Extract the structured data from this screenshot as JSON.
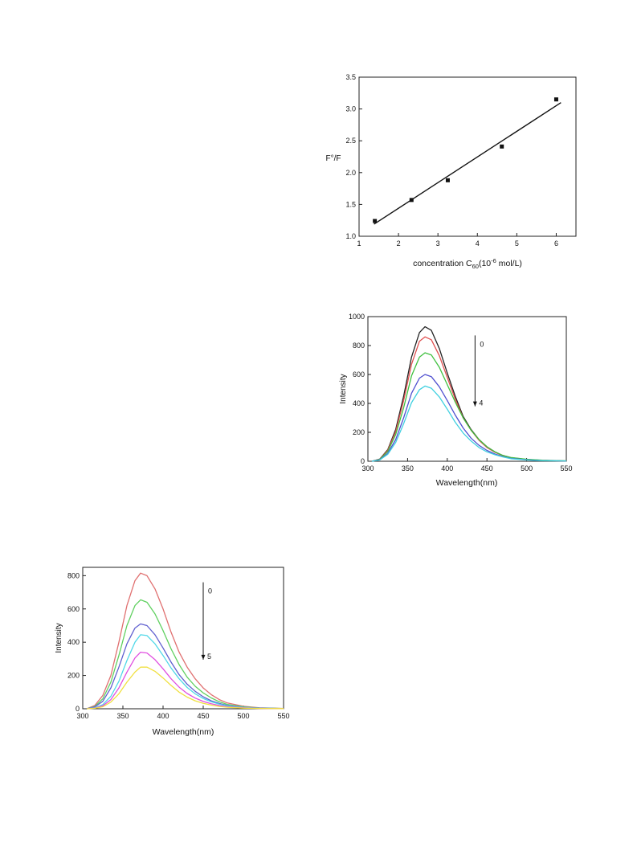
{
  "chart_data": [
    {
      "id": "stern-volmer",
      "type": "scatter",
      "ylabel": "F°/F",
      "xlabel_prefix": "concentration C",
      "xlabel_sub": "60",
      "xlabel_open": "(10",
      "xlabel_sup": "-6",
      "xlabel_suffix": " mol/L)",
      "xlim": [
        1,
        6.5
      ],
      "ylim": [
        1.0,
        3.5
      ],
      "xticks": [
        "1",
        "2",
        "3",
        "4",
        "5",
        "6"
      ],
      "yticks": [
        "1.0",
        "1.5",
        "2.0",
        "2.5",
        "3.0",
        "3.5"
      ],
      "points": [
        [
          1.4,
          1.24
        ],
        [
          2.33,
          1.57
        ],
        [
          3.25,
          1.88
        ],
        [
          4.62,
          2.41
        ],
        [
          6.0,
          3.15
        ]
      ],
      "fit": [
        [
          1.38,
          1.19
        ],
        [
          6.12,
          3.1
        ]
      ]
    },
    {
      "id": "fluorescence-1",
      "type": "line",
      "ylabel": "Intensity",
      "xlabel": "Wavelength(nm)",
      "xlim": [
        300,
        550
      ],
      "ylim": [
        0,
        1000
      ],
      "xticks": [
        "300",
        "350",
        "400",
        "450",
        "500",
        "550"
      ],
      "yticks": [
        "0",
        "200",
        "400",
        "600",
        "800",
        "1000"
      ],
      "arrow": {
        "x": 435,
        "y_top": 870,
        "y_bottom": 380,
        "label_top": "0",
        "label_bottom": "4"
      },
      "series": [
        {
          "color": "#222222",
          "points": [
            [
              305,
              0
            ],
            [
              315,
              15
            ],
            [
              325,
              80
            ],
            [
              335,
              220
            ],
            [
              345,
              450
            ],
            [
              355,
              720
            ],
            [
              365,
              890
            ],
            [
              372,
              930
            ],
            [
              380,
              905
            ],
            [
              390,
              780
            ],
            [
              400,
              610
            ],
            [
              410,
              450
            ],
            [
              420,
              310
            ],
            [
              430,
              220
            ],
            [
              440,
              150
            ],
            [
              450,
              100
            ],
            [
              460,
              65
            ],
            [
              470,
              40
            ],
            [
              480,
              25
            ],
            [
              500,
              12
            ],
            [
              520,
              6
            ],
            [
              550,
              2
            ]
          ]
        },
        {
          "color": "#e05050",
          "points": [
            [
              305,
              0
            ],
            [
              315,
              14
            ],
            [
              325,
              75
            ],
            [
              335,
              205
            ],
            [
              345,
              420
            ],
            [
              355,
              670
            ],
            [
              365,
              830
            ],
            [
              372,
              860
            ],
            [
              380,
              840
            ],
            [
              390,
              730
            ],
            [
              400,
              580
            ],
            [
              410,
              430
            ],
            [
              420,
              300
            ],
            [
              430,
              215
            ],
            [
              440,
              145
            ],
            [
              450,
              95
            ],
            [
              460,
              62
            ],
            [
              470,
              38
            ],
            [
              480,
              24
            ],
            [
              500,
              11
            ],
            [
              520,
              5
            ],
            [
              550,
              2
            ]
          ]
        },
        {
          "color": "#40c040",
          "points": [
            [
              305,
              0
            ],
            [
              315,
              13
            ],
            [
              325,
              68
            ],
            [
              335,
              185
            ],
            [
              345,
              370
            ],
            [
              355,
              590
            ],
            [
              365,
              720
            ],
            [
              372,
              750
            ],
            [
              380,
              735
            ],
            [
              390,
              650
            ],
            [
              400,
              530
            ],
            [
              410,
              410
            ],
            [
              420,
              300
            ],
            [
              430,
              215
            ],
            [
              440,
              150
            ],
            [
              450,
              100
            ],
            [
              460,
              65
            ],
            [
              470,
              40
            ],
            [
              480,
              26
            ],
            [
              500,
              14
            ],
            [
              520,
              8
            ],
            [
              550,
              3
            ]
          ]
        },
        {
          "color": "#5050d0",
          "points": [
            [
              305,
              0
            ],
            [
              315,
              10
            ],
            [
              325,
              55
            ],
            [
              335,
              150
            ],
            [
              345,
              300
            ],
            [
              355,
              470
            ],
            [
              365,
              575
            ],
            [
              372,
              600
            ],
            [
              380,
              585
            ],
            [
              390,
              515
            ],
            [
              400,
              420
            ],
            [
              410,
              320
            ],
            [
              420,
              230
            ],
            [
              430,
              160
            ],
            [
              440,
              110
            ],
            [
              450,
              75
            ],
            [
              460,
              50
            ],
            [
              470,
              32
            ],
            [
              480,
              20
            ],
            [
              500,
              10
            ],
            [
              520,
              5
            ],
            [
              550,
              2
            ]
          ]
        },
        {
          "color": "#40d0e0",
          "points": [
            [
              305,
              0
            ],
            [
              315,
              9
            ],
            [
              325,
              48
            ],
            [
              335,
              130
            ],
            [
              345,
              260
            ],
            [
              355,
              405
            ],
            [
              365,
              495
            ],
            [
              372,
              520
            ],
            [
              380,
              505
            ],
            [
              390,
              445
            ],
            [
              400,
              360
            ],
            [
              410,
              270
            ],
            [
              420,
              195
            ],
            [
              430,
              140
            ],
            [
              440,
              95
            ],
            [
              450,
              65
            ],
            [
              460,
              45
            ],
            [
              470,
              30
            ],
            [
              480,
              18
            ],
            [
              500,
              9
            ],
            [
              520,
              4
            ],
            [
              550,
              2
            ]
          ]
        }
      ]
    },
    {
      "id": "fluorescence-2",
      "type": "line",
      "ylabel": "Intensity",
      "xlabel": "Wavelength(nm)",
      "xlim": [
        300,
        550
      ],
      "ylim": [
        0,
        850
      ],
      "xticks": [
        "300",
        "350",
        "400",
        "450",
        "500",
        "550"
      ],
      "yticks": [
        "0",
        "200",
        "400",
        "600",
        "800"
      ],
      "arrow": {
        "x": 450,
        "y_top": 760,
        "y_bottom": 295,
        "label_top": "0",
        "label_bottom": "5"
      },
      "series": [
        {
          "color": "#e07070",
          "points": [
            [
              305,
              0
            ],
            [
              315,
              20
            ],
            [
              325,
              80
            ],
            [
              335,
              200
            ],
            [
              345,
              400
            ],
            [
              355,
              620
            ],
            [
              365,
              770
            ],
            [
              372,
              815
            ],
            [
              380,
              800
            ],
            [
              390,
              720
            ],
            [
              400,
              600
            ],
            [
              410,
              460
            ],
            [
              420,
              340
            ],
            [
              430,
              250
            ],
            [
              440,
              180
            ],
            [
              450,
              125
            ],
            [
              460,
              85
            ],
            [
              470,
              55
            ],
            [
              480,
              35
            ],
            [
              500,
              15
            ],
            [
              520,
              6
            ],
            [
              550,
              2
            ]
          ]
        },
        {
          "color": "#60d060",
          "points": [
            [
              305,
              0
            ],
            [
              315,
              14
            ],
            [
              325,
              60
            ],
            [
              335,
              160
            ],
            [
              345,
              320
            ],
            [
              355,
              500
            ],
            [
              365,
              620
            ],
            [
              372,
              655
            ],
            [
              380,
              640
            ],
            [
              390,
              570
            ],
            [
              400,
              470
            ],
            [
              410,
              360
            ],
            [
              420,
              265
            ],
            [
              430,
              190
            ],
            [
              440,
              135
            ],
            [
              450,
              95
            ],
            [
              460,
              65
            ],
            [
              470,
              42
            ],
            [
              480,
              26
            ],
            [
              500,
              12
            ],
            [
              520,
              5
            ],
            [
              550,
              2
            ]
          ]
        },
        {
          "color": "#6060d0",
          "points": [
            [
              305,
              0
            ],
            [
              315,
              11
            ],
            [
              325,
              45
            ],
            [
              335,
              125
            ],
            [
              345,
              250
            ],
            [
              355,
              390
            ],
            [
              365,
              485
            ],
            [
              372,
              510
            ],
            [
              380,
              500
            ],
            [
              390,
              445
            ],
            [
              400,
              365
            ],
            [
              410,
              280
            ],
            [
              420,
              205
            ],
            [
              430,
              148
            ],
            [
              440,
              105
            ],
            [
              450,
              72
            ],
            [
              460,
              48
            ],
            [
              470,
              32
            ],
            [
              480,
              20
            ],
            [
              500,
              9
            ],
            [
              520,
              4
            ],
            [
              550,
              1
            ]
          ]
        },
        {
          "color": "#50d8e8",
          "points": [
            [
              305,
              0
            ],
            [
              315,
              6
            ],
            [
              325,
              25
            ],
            [
              335,
              75
            ],
            [
              345,
              165
            ],
            [
              355,
              290
            ],
            [
              365,
              400
            ],
            [
              372,
              445
            ],
            [
              380,
              440
            ],
            [
              390,
              390
            ],
            [
              400,
              320
            ],
            [
              410,
              245
            ],
            [
              420,
              180
            ],
            [
              430,
              128
            ],
            [
              440,
              90
            ],
            [
              450,
              62
            ],
            [
              460,
              42
            ],
            [
              470,
              28
            ],
            [
              480,
              17
            ],
            [
              500,
              8
            ],
            [
              520,
              3
            ],
            [
              550,
              1
            ]
          ]
        },
        {
          "color": "#e050e0",
          "points": [
            [
              305,
              0
            ],
            [
              315,
              4
            ],
            [
              325,
              18
            ],
            [
              335,
              55
            ],
            [
              345,
              125
            ],
            [
              355,
              220
            ],
            [
              365,
              305
            ],
            [
              372,
              340
            ],
            [
              380,
              335
            ],
            [
              390,
              295
            ],
            [
              400,
              240
            ],
            [
              410,
              180
            ],
            [
              420,
              130
            ],
            [
              430,
              92
            ],
            [
              440,
              64
            ],
            [
              450,
              44
            ],
            [
              460,
              30
            ],
            [
              470,
              20
            ],
            [
              480,
              12
            ],
            [
              500,
              6
            ],
            [
              520,
              2
            ],
            [
              550,
              1
            ]
          ]
        },
        {
          "color": "#f0e040",
          "points": [
            [
              305,
              0
            ],
            [
              315,
              3
            ],
            [
              325,
              12
            ],
            [
              335,
              40
            ],
            [
              345,
              90
            ],
            [
              355,
              160
            ],
            [
              365,
              220
            ],
            [
              372,
              250
            ],
            [
              380,
              250
            ],
            [
              390,
              225
            ],
            [
              400,
              185
            ],
            [
              410,
              140
            ],
            [
              420,
              100
            ],
            [
              430,
              70
            ],
            [
              440,
              48
            ],
            [
              450,
              33
            ],
            [
              460,
              22
            ],
            [
              470,
              14
            ],
            [
              480,
              9
            ],
            [
              500,
              4
            ],
            [
              520,
              2
            ],
            [
              550,
              1
            ]
          ]
        }
      ]
    }
  ]
}
